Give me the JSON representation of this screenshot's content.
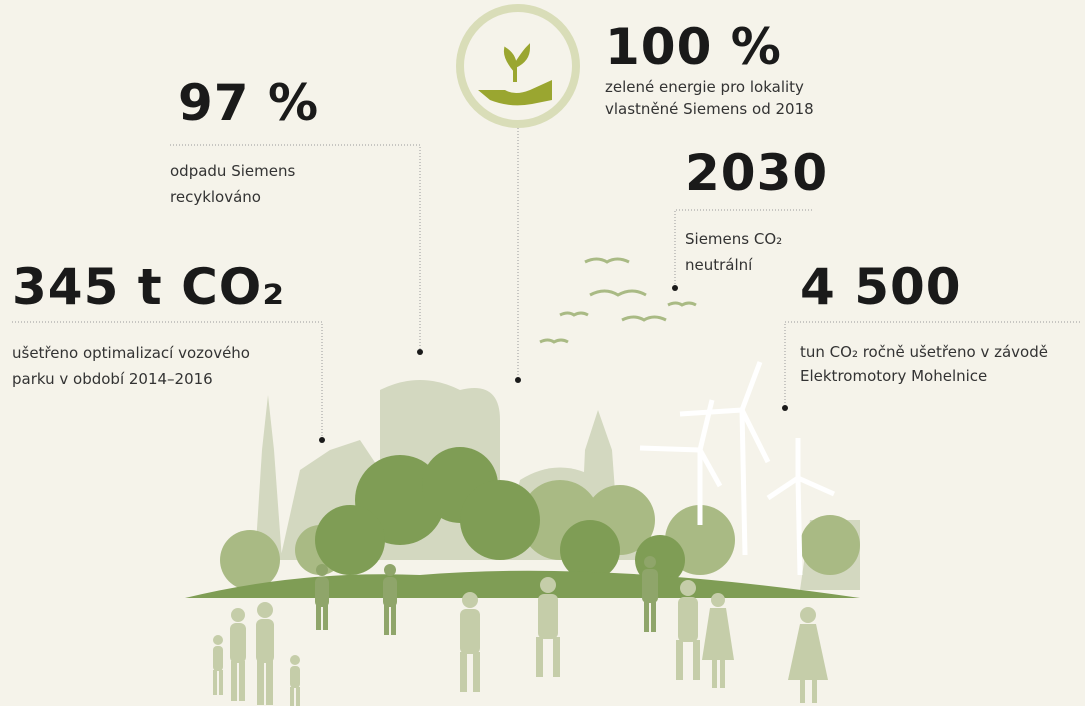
{
  "stats": [
    {
      "value": "345 t CO₂",
      "lines": [
        "ušetřeno optimalizací vozového",
        "parku v období 2014–2016"
      ]
    },
    {
      "value": "97 %",
      "lines": [
        "odpadu Siemens",
        "recyklováno"
      ]
    },
    {
      "value": "100 %",
      "lines": [
        "zelené energie pro lokality",
        "vlastněné Siemens od 2018"
      ]
    },
    {
      "value": "2030",
      "lines": [
        "Siemens CO₂",
        "neutrální"
      ]
    },
    {
      "value": "4 500",
      "lines": [
        "tun CO₂ ročně ušetřeno v závodě",
        "Elektromotory Mohelnice"
      ]
    }
  ]
}
